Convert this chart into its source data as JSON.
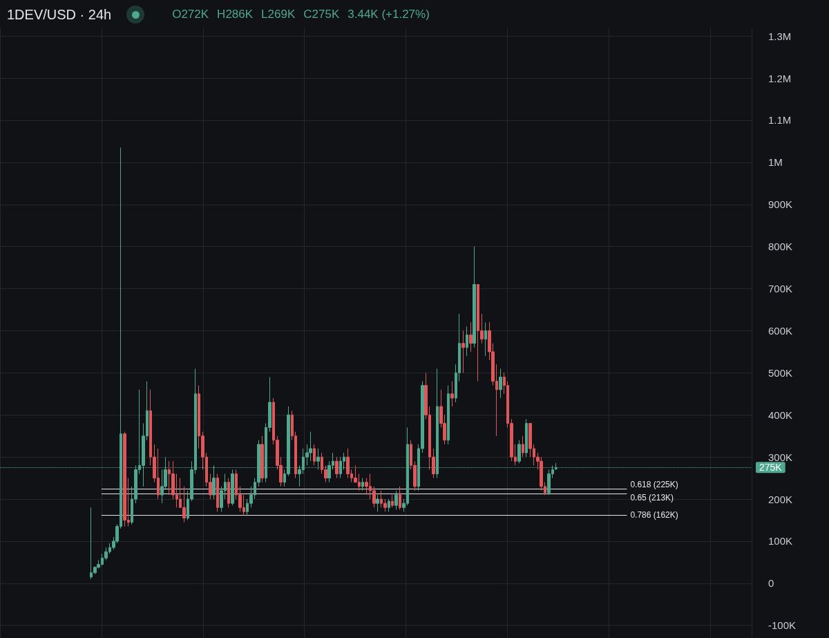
{
  "chart_data": {
    "type": "candlestick",
    "title": "1DEV/USD · 24h",
    "annotations": [
      "O272K",
      "H286K",
      "L269K",
      "C275K",
      "3.44K (+1.27%)"
    ],
    "categories": [
      null,
      null,
      null,
      null,
      null,
      null,
      null,
      null,
      null,
      null,
      null,
      null,
      null,
      null,
      null,
      null,
      null,
      null,
      null,
      null,
      null,
      null,
      null,
      null,
      null,
      null,
      null,
      null,
      null,
      null,
      null,
      null,
      null,
      null,
      null,
      null,
      null,
      null,
      null,
      null,
      null,
      null,
      null,
      null,
      null,
      null,
      null,
      null,
      null,
      null,
      null,
      null,
      null,
      null,
      null,
      null,
      null,
      null,
      null,
      null,
      null,
      null,
      null,
      null,
      null,
      null,
      null,
      null,
      null,
      null,
      null,
      null,
      null,
      null,
      null,
      null,
      null,
      null,
      null,
      null,
      null,
      null,
      null,
      null,
      null,
      null,
      null,
      null,
      null,
      null,
      null,
      null,
      null,
      null,
      null,
      null,
      null,
      null,
      null,
      null,
      null,
      null,
      null,
      null,
      null,
      null,
      null,
      null,
      null,
      null,
      null,
      null,
      null,
      null,
      null,
      null,
      null,
      null,
      null,
      null,
      null,
      null,
      null,
      null,
      null,
      null,
      null,
      null,
      null,
      null,
      null,
      null,
      null,
      null,
      null,
      null,
      null,
      null,
      null,
      null,
      null,
      null,
      null,
      null,
      null,
      null,
      null,
      null,
      null,
      null,
      null,
      null,
      null,
      null,
      null,
      null,
      null,
      null,
      null,
      null,
      null,
      null,
      null,
      null,
      null,
      null,
      null,
      null,
      null,
      null,
      null,
      null,
      null,
      null,
      null,
      null,
      null,
      null,
      null,
      null,
      null,
      null,
      null,
      null,
      null,
      null,
      null,
      null,
      null,
      null,
      null,
      null,
      null,
      null,
      null,
      null,
      null,
      null,
      null,
      null,
      null,
      null
    ],
    "ohlc": [
      null,
      null,
      null,
      null,
      null,
      null,
      null,
      null,
      null,
      null,
      null,
      null,
      null,
      null,
      null,
      null,
      null,
      null,
      null,
      null,
      null,
      null,
      null,
      null,
      [
        15000,
        180000,
        10000,
        25000
      ],
      [
        25000,
        40000,
        22000,
        38000
      ],
      [
        38000,
        55000,
        35000,
        45000
      ],
      [
        45000,
        70000,
        42000,
        60000
      ],
      [
        60000,
        85000,
        55000,
        75000
      ],
      [
        75000,
        95000,
        70000,
        85000
      ],
      [
        85000,
        110000,
        80000,
        100000
      ],
      [
        100000,
        140000,
        95000,
        135000
      ],
      [
        135000,
        1035000,
        130000,
        355000
      ],
      [
        355000,
        360000,
        135000,
        150000
      ],
      [
        150000,
        250000,
        135000,
        145000
      ],
      [
        145000,
        230000,
        140000,
        200000
      ],
      [
        200000,
        280000,
        190000,
        270000
      ],
      [
        270000,
        460000,
        260000,
        280000
      ],
      [
        280000,
        380000,
        230000,
        350000
      ],
      [
        350000,
        480000,
        340000,
        410000
      ],
      [
        410000,
        460000,
        280000,
        300000
      ],
      [
        300000,
        330000,
        240000,
        250000
      ],
      [
        250000,
        320000,
        200000,
        210000
      ],
      [
        210000,
        270000,
        190000,
        230000
      ],
      [
        230000,
        300000,
        225000,
        270000
      ],
      [
        270000,
        290000,
        210000,
        260000
      ],
      [
        260000,
        290000,
        200000,
        210000
      ],
      [
        210000,
        260000,
        180000,
        200000
      ],
      [
        200000,
        250000,
        180000,
        180000
      ],
      [
        180000,
        230000,
        145000,
        155000
      ],
      [
        155000,
        220000,
        150000,
        200000
      ],
      [
        200000,
        290000,
        195000,
        270000
      ],
      [
        270000,
        510000,
        260000,
        450000
      ],
      [
        450000,
        470000,
        320000,
        350000
      ],
      [
        350000,
        360000,
        270000,
        300000
      ],
      [
        300000,
        310000,
        230000,
        240000
      ],
      [
        240000,
        260000,
        200000,
        210000
      ],
      [
        210000,
        280000,
        200000,
        250000
      ],
      [
        250000,
        260000,
        170000,
        180000
      ],
      [
        180000,
        230000,
        170000,
        220000
      ],
      [
        220000,
        260000,
        200000,
        240000
      ],
      [
        240000,
        250000,
        180000,
        190000
      ],
      [
        190000,
        270000,
        185000,
        260000
      ],
      [
        260000,
        270000,
        200000,
        210000
      ],
      [
        210000,
        230000,
        170000,
        180000
      ],
      [
        180000,
        210000,
        160000,
        170000
      ],
      [
        170000,
        200000,
        160000,
        190000
      ],
      [
        190000,
        230000,
        180000,
        210000
      ],
      [
        210000,
        250000,
        200000,
        240000
      ],
      [
        240000,
        340000,
        230000,
        330000
      ],
      [
        330000,
        350000,
        240000,
        250000
      ],
      [
        250000,
        380000,
        240000,
        370000
      ],
      [
        370000,
        490000,
        360000,
        430000
      ],
      [
        430000,
        440000,
        330000,
        340000
      ],
      [
        340000,
        350000,
        270000,
        280000
      ],
      [
        280000,
        300000,
        230000,
        240000
      ],
      [
        240000,
        270000,
        230000,
        260000
      ],
      [
        260000,
        420000,
        255000,
        400000
      ],
      [
        400000,
        410000,
        340000,
        350000
      ],
      [
        350000,
        360000,
        250000,
        260000
      ],
      [
        260000,
        280000,
        230000,
        270000
      ],
      [
        270000,
        320000,
        260000,
        300000
      ],
      [
        300000,
        330000,
        280000,
        310000
      ],
      [
        310000,
        360000,
        290000,
        320000
      ],
      [
        320000,
        330000,
        280000,
        290000
      ],
      [
        290000,
        320000,
        270000,
        300000
      ],
      [
        300000,
        310000,
        260000,
        270000
      ],
      [
        270000,
        280000,
        240000,
        250000
      ],
      [
        250000,
        290000,
        240000,
        280000
      ],
      [
        280000,
        310000,
        270000,
        290000
      ],
      [
        290000,
        300000,
        250000,
        260000
      ],
      [
        260000,
        300000,
        250000,
        290000
      ],
      [
        290000,
        310000,
        270000,
        300000
      ],
      [
        300000,
        320000,
        250000,
        260000
      ],
      [
        260000,
        270000,
        240000,
        250000
      ],
      [
        250000,
        280000,
        240000,
        240000
      ],
      [
        240000,
        260000,
        220000,
        230000
      ],
      [
        230000,
        250000,
        220000,
        240000
      ],
      [
        240000,
        250000,
        210000,
        230000
      ],
      [
        230000,
        260000,
        200000,
        220000
      ],
      [
        220000,
        230000,
        180000,
        190000
      ],
      [
        190000,
        210000,
        170000,
        200000
      ],
      [
        200000,
        220000,
        180000,
        190000
      ],
      [
        190000,
        200000,
        170000,
        180000
      ],
      [
        180000,
        200000,
        170000,
        195000
      ],
      [
        195000,
        210000,
        180000,
        185000
      ],
      [
        185000,
        220000,
        175000,
        210000
      ],
      [
        210000,
        230000,
        175000,
        180000
      ],
      [
        180000,
        200000,
        170000,
        190000
      ],
      [
        190000,
        370000,
        185000,
        330000
      ],
      [
        330000,
        340000,
        270000,
        280000
      ],
      [
        280000,
        290000,
        220000,
        230000
      ],
      [
        230000,
        330000,
        220000,
        320000
      ],
      [
        320000,
        480000,
        310000,
        470000
      ],
      [
        470000,
        500000,
        390000,
        400000
      ],
      [
        400000,
        420000,
        270000,
        300000
      ],
      [
        300000,
        320000,
        250000,
        260000
      ],
      [
        260000,
        510000,
        250000,
        420000
      ],
      [
        420000,
        460000,
        370000,
        380000
      ],
      [
        380000,
        400000,
        330000,
        340000
      ],
      [
        340000,
        470000,
        330000,
        450000
      ],
      [
        450000,
        480000,
        420000,
        440000
      ],
      [
        440000,
        520000,
        430000,
        500000
      ],
      [
        500000,
        640000,
        480000,
        570000
      ],
      [
        570000,
        600000,
        500000,
        560000
      ],
      [
        560000,
        610000,
        540000,
        590000
      ],
      [
        590000,
        620000,
        550000,
        570000
      ],
      [
        570000,
        800000,
        560000,
        710000
      ],
      [
        710000,
        710000,
        480000,
        600000
      ],
      [
        600000,
        640000,
        570000,
        580000
      ],
      [
        580000,
        620000,
        540000,
        600000
      ],
      [
        600000,
        620000,
        530000,
        550000
      ],
      [
        550000,
        570000,
        470000,
        480000
      ],
      [
        480000,
        520000,
        350000,
        460000
      ],
      [
        460000,
        510000,
        440000,
        490000
      ],
      [
        490000,
        500000,
        450000,
        470000
      ],
      [
        470000,
        480000,
        370000,
        380000
      ],
      [
        380000,
        390000,
        290000,
        300000
      ],
      [
        300000,
        330000,
        280000,
        290000
      ],
      [
        290000,
        340000,
        285000,
        330000
      ],
      [
        330000,
        350000,
        300000,
        310000
      ],
      [
        310000,
        390000,
        300000,
        380000
      ],
      [
        380000,
        380000,
        300000,
        320000
      ],
      [
        320000,
        330000,
        280000,
        300000
      ],
      [
        300000,
        310000,
        270000,
        290000
      ],
      [
        290000,
        300000,
        220000,
        230000
      ],
      [
        230000,
        240000,
        210000,
        215000
      ],
      [
        215000,
        270000,
        210000,
        260000
      ],
      [
        260000,
        280000,
        250000,
        270000
      ],
      [
        272000,
        286000,
        269000,
        275000
      ],
      null,
      null,
      null,
      null,
      null,
      null,
      null,
      null,
      null,
      null,
      null,
      null,
      null,
      null,
      null,
      null,
      null,
      null,
      null,
      null,
      null,
      null,
      null,
      null,
      null,
      null,
      null,
      null,
      null,
      null,
      null,
      null,
      null,
      null,
      null,
      null,
      null,
      null,
      null,
      null,
      null,
      null,
      null,
      null,
      null,
      null,
      null,
      null,
      null,
      null,
      null,
      null
    ],
    "colors": [
      null,
      null,
      null,
      null,
      null,
      null,
      null,
      null,
      null,
      null,
      null,
      null,
      null,
      null,
      null,
      null,
      null,
      null,
      null,
      null,
      null,
      null,
      null,
      null,
      "#4fa88d",
      "#4fa88d",
      "#4fa88d",
      "#4fa88d",
      "#4fa88d",
      "#4fa88d",
      "#4fa88d",
      "#4fa88d",
      "#4fa88d",
      "#e0575b",
      "#e0575b",
      "#4fa88d",
      "#4fa88d",
      "#4fa88d",
      "#4fa88d",
      "#4fa88d",
      "#e0575b",
      "#e0575b",
      "#e0575b",
      "#4fa88d",
      "#4fa88d",
      "#e0575b",
      "#e0575b",
      "#e0575b",
      "#e0575b",
      "#e0575b",
      "#4fa88d",
      "#4fa88d",
      "#4fa88d",
      "#e0575b",
      "#e0575b",
      "#e0575b",
      "#e0575b",
      "#4fa88d",
      "#e0575b",
      "#4fa88d",
      "#4fa88d",
      "#e0575b",
      "#4fa88d",
      "#e0575b",
      "#e0575b",
      "#e0575b",
      "#4fa88d",
      "#4fa88d",
      "#4fa88d",
      "#4fa88d",
      "#e0575b",
      "#4fa88d",
      "#4fa88d",
      "#e0575b",
      "#e0575b",
      "#e0575b",
      "#4fa88d",
      "#4fa88d",
      "#e0575b",
      "#e0575b",
      "#4fa88d",
      "#4fa88d",
      "#4fa88d",
      "#4fa88d",
      "#e0575b",
      "#4fa88d",
      "#e0575b",
      "#e0575b",
      "#4fa88d",
      "#4fa88d",
      "#e0575b",
      "#4fa88d",
      "#4fa88d",
      "#e0575b",
      "#e0575b",
      "#e0575b",
      "#e0575b",
      "#4fa88d",
      "#e0575b",
      "#e0575b",
      "#e0575b",
      "#4fa88d",
      "#e0575b",
      "#e0575b",
      "#4fa88d",
      "#e0575b",
      "#4fa88d",
      "#e0575b",
      "#4fa88d",
      "#4fa88d",
      "#e0575b",
      "#e0575b",
      "#4fa88d",
      "#4fa88d",
      "#e0575b",
      "#e0575b",
      "#e0575b",
      "#4fa88d",
      "#e0575b",
      "#e0575b",
      "#4fa88d",
      "#e0575b",
      "#4fa88d",
      "#4fa88d",
      "#e0575b",
      "#4fa88d",
      "#e0575b",
      "#4fa88d",
      "#e0575b",
      "#e0575b",
      "#4fa88d",
      "#e0575b",
      "#e0575b",
      "#e0575b",
      "#4fa88d",
      "#e0575b",
      "#e0575b",
      "#e0575b",
      "#e0575b",
      "#4fa88d",
      "#e0575b",
      "#4fa88d",
      "#e0575b",
      "#e0575b",
      "#e0575b",
      "#e0575b",
      "#e0575b",
      "#4fa88d",
      "#4fa88d",
      "#4fa88d",
      null,
      null,
      null,
      null,
      null,
      null,
      null,
      null,
      null,
      null,
      null,
      null,
      null,
      null,
      null,
      null,
      null,
      null,
      null,
      null,
      null,
      null,
      null,
      null,
      null,
      null,
      null,
      null,
      null,
      null,
      null,
      null,
      null,
      null,
      null,
      null,
      null,
      null,
      null,
      null,
      null,
      null,
      null,
      null,
      null,
      null,
      null,
      null,
      null,
      null,
      null,
      null
    ],
    "ylim": [
      -130000,
      1320000
    ],
    "yticks": [
      {
        "value": -100000,
        "label": "-100K"
      },
      0,
      {
        "value": 100000,
        "label": "100K"
      },
      {
        "value": 200000,
        "label": "200K"
      },
      {
        "value": 300000,
        "label": "300K"
      },
      {
        "value": 400000,
        "label": "400K"
      },
      {
        "value": 500000,
        "label": "500K"
      },
      {
        "value": 600000,
        "label": "600K"
      },
      {
        "value": 700000,
        "label": "700K"
      },
      {
        "value": 800000,
        "label": "800K"
      },
      {
        "value": 900000,
        "label": "900K"
      },
      {
        "value": 1000000,
        "label": "1M"
      },
      {
        "value": 1100000,
        "label": "1.1M"
      },
      {
        "value": 1200000,
        "label": "1.2M"
      },
      {
        "value": 1300000,
        "label": "1.3M"
      }
    ],
    "ref_lines": [
      {
        "axis": "y",
        "value": 275000,
        "label": "275K",
        "color": "#4fa88d",
        "line_style": "dotted"
      },
      {
        "axis": "y",
        "value": 225000,
        "label": "0.618 (225K)",
        "color": "#e8e8e8",
        "line_style": "solid"
      },
      {
        "axis": "y",
        "value": 213000,
        "label": "0.65 (213K)",
        "color": "#e8e8e8",
        "line_style": "solid"
      },
      {
        "axis": "y",
        "value": 162000,
        "label": "0.786 (162K)",
        "color": "#e8e8e8",
        "line_style": "solid"
      }
    ],
    "grid": true
  }
}
